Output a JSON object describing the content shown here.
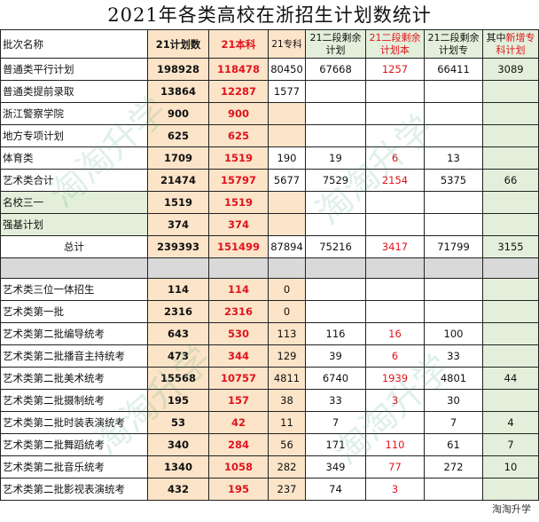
{
  "title": "2021年各类高校在浙招生计划数统计",
  "headers": {
    "batch_name": "批次名称",
    "plan21": "21计划数",
    "bk21": "21本科",
    "zk21": "21专科",
    "rem_total": "21二段剩余计划",
    "rem_bk": "21二段剩余计划本",
    "rem_zk": "21二段剩余计划专",
    "new_zk_prefix": "其中",
    "new_zk_suffix": "新增专科计划"
  },
  "rows": [
    {
      "name": "普通类平行计划",
      "plan": "198928",
      "bk": "118478",
      "zk": "80450",
      "rt": "67668",
      "rb": "1257",
      "rz": "66411",
      "nz": "3089"
    },
    {
      "name": "普通类提前录取",
      "plan": "13864",
      "bk": "12287",
      "zk": "1577",
      "rt": "",
      "rb": "",
      "rz": "",
      "nz": ""
    },
    {
      "name": "浙江警察学院",
      "plan": "900",
      "bk": "900",
      "zk": "",
      "rt": "",
      "rb": "",
      "rz": "",
      "nz": ""
    },
    {
      "name": "地方专项计划",
      "plan": "625",
      "bk": "625",
      "zk": "",
      "rt": "",
      "rb": "",
      "rz": "",
      "nz": ""
    },
    {
      "name": "体育类",
      "plan": "1709",
      "bk": "1519",
      "zk": "190",
      "rt": "19",
      "rb": "6",
      "rz": "13",
      "nz": ""
    },
    {
      "name": "艺术类合计",
      "plan": "21474",
      "bk": "15797",
      "zk": "5677",
      "rt": "7529",
      "rb": "2154",
      "rz": "5375",
      "nz": "66"
    },
    {
      "name": "名校三一",
      "plan": "1519",
      "bk": "1519",
      "zk": "",
      "rt": "",
      "rb": "",
      "rz": "",
      "nz": ""
    },
    {
      "name": "强基计划",
      "plan": "374",
      "bk": "374",
      "zk": "",
      "rt": "",
      "rb": "",
      "rz": "",
      "nz": ""
    }
  ],
  "total": {
    "name": "总计",
    "plan": "239393",
    "bk": "151499",
    "zk": "87894",
    "rt": "75216",
    "rb": "3417",
    "rz": "71799",
    "nz": "3155"
  },
  "art_rows": [
    {
      "name": "艺术类三位一体招生",
      "plan": "114",
      "bk": "114",
      "zk": "0",
      "rt": "",
      "rb": "",
      "rz": "",
      "nz": ""
    },
    {
      "name": "艺术类第一批",
      "plan": "2316",
      "bk": "2316",
      "zk": "0",
      "rt": "",
      "rb": "",
      "rz": "",
      "nz": ""
    },
    {
      "name": "艺术类第二批编导统考",
      "plan": "643",
      "bk": "530",
      "zk": "113",
      "rt": "116",
      "rb": "16",
      "rz": "100",
      "nz": ""
    },
    {
      "name": "艺术类第二批播音主持统考",
      "plan": "473",
      "bk": "344",
      "zk": "129",
      "rt": "39",
      "rb": "6",
      "rz": "33",
      "nz": ""
    },
    {
      "name": "艺术类第二批美术统考",
      "plan": "15568",
      "bk": "10757",
      "zk": "4811",
      "rt": "6740",
      "rb": "1939",
      "rz": "4801",
      "nz": "44"
    },
    {
      "name": "艺术类第二批摄制统考",
      "plan": "195",
      "bk": "157",
      "zk": "38",
      "rt": "33",
      "rb": "3",
      "rz": "30",
      "nz": ""
    },
    {
      "name": "艺术类第二批时装表演统考",
      "plan": "53",
      "bk": "42",
      "zk": "11",
      "rt": "7",
      "rb": "",
      "rz": "7",
      "nz": "4"
    },
    {
      "name": "艺术类第二批舞蹈统考",
      "plan": "340",
      "bk": "284",
      "zk": "56",
      "rt": "171",
      "rb": "110",
      "rz": "61",
      "nz": "7"
    },
    {
      "name": "艺术类第二批音乐统考",
      "plan": "1340",
      "bk": "1058",
      "zk": "282",
      "rt": "349",
      "rb": "77",
      "rz": "272",
      "nz": "10"
    },
    {
      "name": "艺术类第二批影视表演统考",
      "plan": "432",
      "bk": "195",
      "zk": "237",
      "rt": "74",
      "rb": "3",
      "rz": "",
      "nz": ""
    }
  ],
  "watermark": "淘淘升学",
  "logo": "淘淘升学"
}
